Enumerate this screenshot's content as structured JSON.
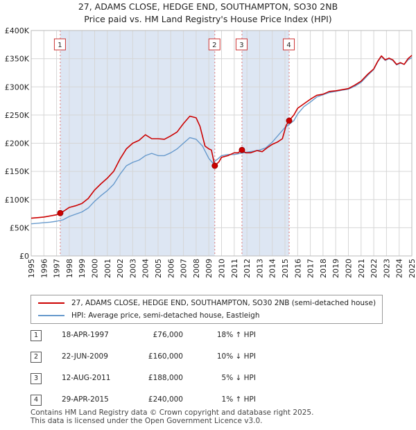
{
  "chart_data": {
    "type": "line",
    "title": "27, ADAMS CLOSE, HEDGE END, SOUTHAMPTON, SO30 2NB",
    "subtitle": "Price paid vs. HM Land Registry's House Price Index (HPI)",
    "xlim": [
      1995,
      2025
    ],
    "ylim": [
      0,
      400000
    ],
    "x_ticks": [
      "1995",
      "1996",
      "1997",
      "1998",
      "1999",
      "2000",
      "2001",
      "2002",
      "2003",
      "2004",
      "2005",
      "2006",
      "2007",
      "2008",
      "2009",
      "2010",
      "2011",
      "2012",
      "2013",
      "2014",
      "2015",
      "2016",
      "2017",
      "2018",
      "2019",
      "2020",
      "2021",
      "2022",
      "2023",
      "2024",
      "2025"
    ],
    "y_ticks": [
      "£0",
      "£50K",
      "£100K",
      "£150K",
      "£200K",
      "£250K",
      "£300K",
      "£350K",
      "£400K"
    ],
    "series": [
      {
        "name": "27, ADAMS CLOSE, HEDGE END, SOUTHAMPTON, SO30 2NB (semi-detached house)",
        "color": "#cc0000",
        "x": [
          1995.0,
          1995.5,
          1996.0,
          1996.5,
          1997.0,
          1997.29,
          1997.6,
          1998.0,
          1998.5,
          1999.0,
          1999.5,
          2000.0,
          2000.5,
          2001.0,
          2001.5,
          2002.0,
          2002.5,
          2003.0,
          2003.5,
          2004.0,
          2004.5,
          2005.0,
          2005.5,
          2006.0,
          2006.5,
          2007.0,
          2007.5,
          2008.0,
          2008.3,
          2008.7,
          2009.0,
          2009.2,
          2009.47,
          2009.8,
          2010.0,
          2010.5,
          2011.0,
          2011.3,
          2011.61,
          2011.9,
          2012.3,
          2012.8,
          2013.2,
          2013.6,
          2014.0,
          2014.4,
          2014.8,
          2015.1,
          2015.33,
          2015.7,
          2016.0,
          2016.5,
          2017.0,
          2017.5,
          2018.0,
          2018.5,
          2019.0,
          2019.5,
          2020.0,
          2020.5,
          2021.0,
          2021.5,
          2022.0,
          2022.3,
          2022.6,
          2022.9,
          2023.2,
          2023.5,
          2023.8,
          2024.1,
          2024.4,
          2024.7,
          2025.0
        ],
        "y": [
          67000,
          68000,
          69000,
          71000,
          73000,
          76000,
          80000,
          86000,
          89000,
          93000,
          102000,
          117000,
          128000,
          138000,
          150000,
          172000,
          190000,
          200000,
          205000,
          215000,
          208000,
          208000,
          207000,
          213000,
          220000,
          235000,
          248000,
          245000,
          230000,
          195000,
          190000,
          188000,
          160000,
          167000,
          175000,
          178000,
          183000,
          183000,
          188000,
          183000,
          183000,
          187000,
          185000,
          192000,
          198000,
          202000,
          208000,
          232000,
          240000,
          250000,
          262000,
          270000,
          278000,
          285000,
          287000,
          292000,
          293000,
          295000,
          297000,
          303000,
          310000,
          322000,
          332000,
          345000,
          355000,
          348000,
          351000,
          348000,
          340000,
          343000,
          340000,
          350000,
          356000
        ]
      },
      {
        "name": "HPI: Average price, semi-detached house, Eastleigh",
        "color": "#6699cc",
        "x": [
          1995.0,
          1995.5,
          1996.0,
          1996.5,
          1997.0,
          1997.5,
          1998.0,
          1998.5,
          1999.0,
          1999.5,
          2000.0,
          2000.5,
          2001.0,
          2001.5,
          2002.0,
          2002.5,
          2003.0,
          2003.5,
          2004.0,
          2004.5,
          2005.0,
          2005.5,
          2006.0,
          2006.5,
          2007.0,
          2007.5,
          2008.0,
          2008.5,
          2009.0,
          2009.3,
          2009.7,
          2010.0,
          2010.5,
          2011.0,
          2011.5,
          2012.0,
          2012.5,
          2013.0,
          2013.5,
          2014.0,
          2014.5,
          2015.0,
          2015.3,
          2015.7,
          2016.0,
          2016.5,
          2017.0,
          2017.5,
          2018.0,
          2018.5,
          2019.0,
          2019.5,
          2020.0,
          2020.5,
          2021.0,
          2021.5,
          2022.0,
          2022.3,
          2022.6,
          2022.9,
          2023.2,
          2023.5,
          2023.8,
          2024.1,
          2024.4,
          2024.7,
          2025.0
        ],
        "y": [
          57000,
          58000,
          59000,
          60000,
          61500,
          64000,
          70000,
          74000,
          78000,
          85000,
          97000,
          107000,
          116000,
          127000,
          145000,
          160000,
          166000,
          170000,
          178000,
          182000,
          178000,
          178000,
          183000,
          190000,
          200000,
          210000,
          207000,
          195000,
          173000,
          165000,
          172000,
          178000,
          180000,
          180000,
          182000,
          184000,
          186000,
          188000,
          192000,
          202000,
          215000,
          228000,
          233000,
          240000,
          252000,
          265000,
          273000,
          282000,
          286000,
          290000,
          292000,
          294000,
          296000,
          301000,
          308000,
          320000,
          331000,
          344000,
          354000,
          347000,
          350000,
          347000,
          339000,
          342000,
          340000,
          348000,
          352000
        ]
      }
    ],
    "sales": [
      {
        "label": "1",
        "x": 1997.29,
        "y": 76000,
        "date": "18-APR-1997",
        "price": "£76,000",
        "hpi": "18% ↑ HPI"
      },
      {
        "label": "2",
        "x": 2009.47,
        "y": 160000,
        "date": "22-JUN-2009",
        "price": "£160,000",
        "hpi": "10% ↓ HPI"
      },
      {
        "label": "3",
        "x": 2011.61,
        "y": 188000,
        "date": "12-AUG-2011",
        "price": "£188,000",
        "hpi": "5% ↓ HPI"
      },
      {
        "label": "4",
        "x": 2015.33,
        "y": 240000,
        "date": "29-APR-2015",
        "price": "£240,000",
        "hpi": "1% ↑ HPI"
      }
    ],
    "shaded_spans": [
      [
        1997.29,
        2009.47
      ],
      [
        2011.61,
        2015.33
      ]
    ],
    "legend_position": "below"
  },
  "footer": {
    "line1": "Contains HM Land Registry data © Crown copyright and database right 2025.",
    "line2": "This data is licensed under the Open Government Licence v3.0."
  }
}
